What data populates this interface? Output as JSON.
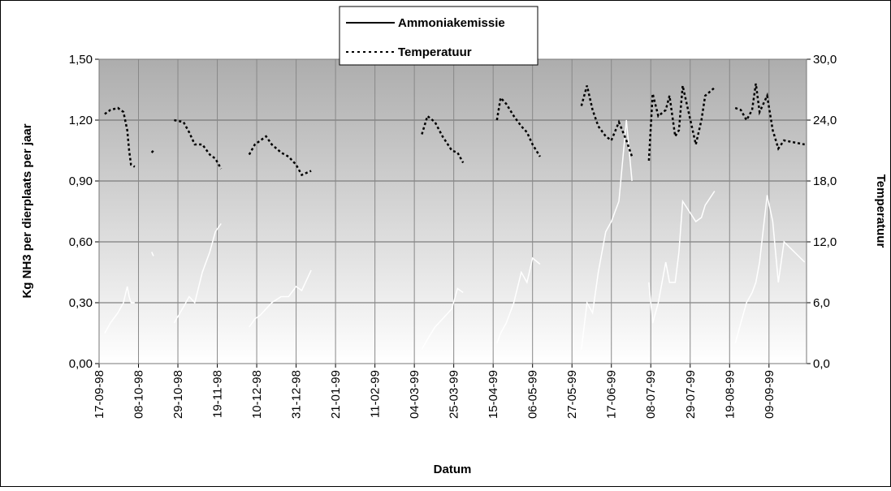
{
  "chart_data": {
    "type": "line",
    "xlabel": "Datum",
    "ylabel": "Kg NH3 per dierplaats per jaar",
    "y2label": "Temperatuur",
    "x": [
      "20-09-98",
      "23-09-98",
      "27-09-98",
      "30-09-98",
      "02-10-98",
      "03-10-98",
      "04-10-98",
      "06-10-98",
      "11-10-98",
      "15-10-98",
      "16-10-98",
      "22-10-98",
      "27-10-98",
      "01-11-98",
      "04-11-98",
      "07-11-98",
      "11-11-98",
      "15-11-98",
      "18-11-98",
      "21-11-98",
      "28-11-98",
      "06-12-98",
      "09-12-98",
      "12-12-98",
      "15-12-98",
      "18-12-98",
      "23-12-98",
      "27-12-98",
      "31-12-98",
      "03-01-99",
      "08-01-99",
      "04-02-99",
      "08-03-99",
      "11-03-99",
      "15-03-99",
      "19-03-99",
      "24-03-99",
      "27-03-99",
      "30-03-99",
      "05-04-99",
      "17-04-99",
      "19-04-99",
      "22-04-99",
      "26-04-99",
      "30-04-99",
      "03-05-99",
      "06-05-99",
      "10-05-99",
      "20-05-99",
      "01-06-99",
      "04-06-99",
      "07-06-99",
      "10-06-99",
      "14-06-99",
      "17-06-99",
      "21-06-99",
      "25-06-99",
      "28-06-99",
      "03-07-99",
      "07-07-99",
      "09-07-99",
      "12-07-99",
      "16-07-99",
      "18-07-99",
      "21-07-99",
      "23-07-99",
      "25-07-99",
      "01-08-99",
      "04-08-99",
      "06-08-99",
      "11-08-99",
      "16-08-99",
      "22-08-99",
      "25-08-99",
      "28-08-99",
      "31-08-99",
      "02-09-99",
      "04-09-99",
      "08-09-99",
      "11-09-99",
      "14-09-99",
      "17-09-99",
      "28-09-99"
    ],
    "series": [
      {
        "name": "Ammoniakemissie",
        "color": "#ffffff",
        "dash": false,
        "values": [
          0.15,
          0.2,
          0.25,
          0.3,
          0.38,
          0.33,
          0.3,
          0.3,
          null,
          0.55,
          0.53,
          null,
          0.2,
          0.28,
          0.33,
          0.3,
          0.45,
          0.55,
          0.65,
          0.69,
          null,
          0.18,
          0.22,
          0.24,
          0.27,
          0.3,
          0.33,
          0.33,
          0.38,
          0.36,
          0.46,
          null,
          0.07,
          0.12,
          0.18,
          0.22,
          0.27,
          0.37,
          0.35,
          null,
          0.1,
          0.15,
          0.2,
          0.3,
          0.45,
          0.4,
          0.52,
          0.49,
          null,
          0.07,
          0.3,
          0.25,
          0.45,
          0.65,
          0.7,
          0.8,
          1.2,
          0.9,
          null,
          0.4,
          0.2,
          0.3,
          0.5,
          0.4,
          0.4,
          0.55,
          0.8,
          0.7,
          0.72,
          0.78,
          0.85,
          null,
          0.1,
          0.2,
          0.3,
          0.35,
          0.4,
          0.5,
          0.83,
          0.7,
          0.4,
          0.6,
          0.5
        ]
      },
      {
        "name": "Temperatuur",
        "color": "#000000",
        "dash": true,
        "axis": "y2",
        "values": [
          24.6,
          25,
          25.2,
          24.8,
          23,
          21,
          19.6,
          19.4,
          null,
          20.8,
          21,
          null,
          24,
          23.8,
          22.8,
          21.6,
          21.6,
          20.6,
          20.2,
          19.2,
          null,
          20.6,
          21.6,
          22,
          22.4,
          21.6,
          20.8,
          20.4,
          19.6,
          18.6,
          19,
          null,
          22.6,
          24.4,
          23.8,
          22.4,
          21,
          20.8,
          19.8,
          null,
          24,
          26.2,
          25.6,
          24.4,
          23.4,
          22.8,
          21.6,
          20.4,
          null,
          25.4,
          27.4,
          25,
          23.4,
          22.4,
          22,
          23.8,
          22,
          20.4,
          null,
          20,
          26.6,
          24.4,
          25,
          26.4,
          22.4,
          23,
          27.4,
          21.6,
          24,
          26.4,
          27.2,
          null,
          25.2,
          25,
          24,
          25,
          27.6,
          24.8,
          26.4,
          23,
          21.2,
          22,
          21.6
        ]
      }
    ],
    "xlim": [
      "17-09-98",
      "29-09-99"
    ],
    "xticks": [
      "17-09-98",
      "08-10-98",
      "29-10-98",
      "19-11-98",
      "10-12-98",
      "31-12-98",
      "21-01-99",
      "11-02-99",
      "04-03-99",
      "25-03-99",
      "15-04-99",
      "06-05-99",
      "27-05-99",
      "17-06-99",
      "08-07-99",
      "29-07-99",
      "19-08-99",
      "09-09-99"
    ],
    "ylim": [
      0,
      1.5
    ],
    "yticks": [
      {
        "value": 0,
        "label": "0,00"
      },
      {
        "value": 0.3,
        "label": "0,30"
      },
      {
        "value": 0.6,
        "label": "0,60"
      },
      {
        "value": 0.9,
        "label": "0,90"
      },
      {
        "value": 1.2,
        "label": "1,20"
      },
      {
        "value": 1.5,
        "label": "1,50"
      }
    ],
    "y2lim": [
      0,
      30
    ],
    "y2ticks": [
      {
        "value": 0,
        "label": "0,0"
      },
      {
        "value": 6,
        "label": "6,0"
      },
      {
        "value": 12,
        "label": "12,0"
      },
      {
        "value": 18,
        "label": "18,0"
      },
      {
        "value": 24,
        "label": "24,0"
      },
      {
        "value": 30,
        "label": "30,0"
      }
    ],
    "grid": true,
    "legend": "top"
  }
}
